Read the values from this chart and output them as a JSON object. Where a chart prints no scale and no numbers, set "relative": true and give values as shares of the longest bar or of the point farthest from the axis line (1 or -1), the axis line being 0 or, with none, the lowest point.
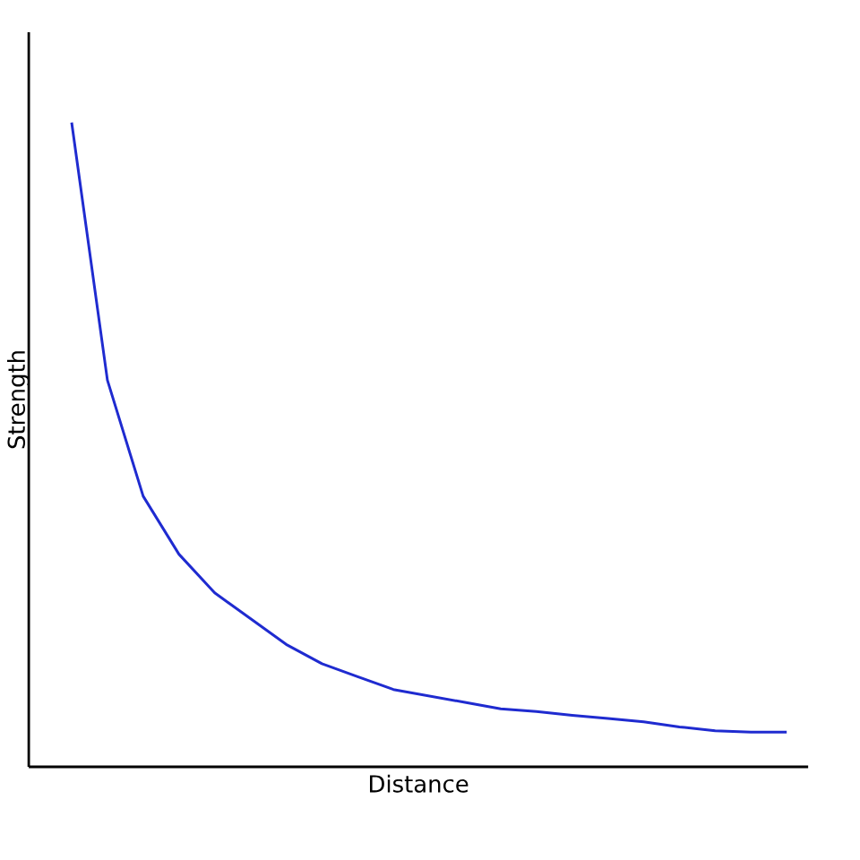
{
  "chart_data": {
    "type": "line",
    "relative": true,
    "xlabel": "Distance",
    "ylabel": "Strength",
    "color": "#1f2bd0",
    "categories": [
      null,
      null,
      null,
      null,
      null,
      null,
      null,
      null,
      null,
      null,
      null,
      null,
      null,
      null,
      null,
      null,
      null,
      null,
      null,
      null,
      null
    ],
    "values": [
      1.0,
      0.6,
      0.42,
      0.33,
      0.27,
      0.23,
      0.19,
      0.16,
      0.14,
      0.12,
      0.11,
      0.1,
      0.09,
      0.086,
      0.08,
      0.075,
      0.07,
      0.062,
      0.056,
      0.054,
      0.054
    ],
    "marker": "none",
    "line_style": "solid"
  }
}
